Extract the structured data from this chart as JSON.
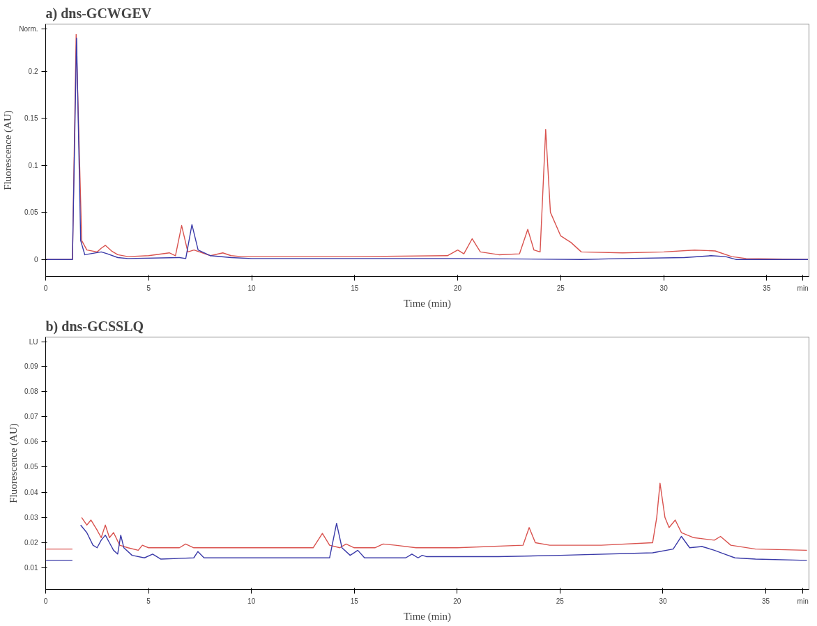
{
  "chart_data": [
    {
      "type": "line",
      "title": "a) dns-GCWGEV",
      "xlabel": "Time (min)",
      "ylabel": "Fluorescence (AU)",
      "xlim": [
        0,
        37.05
      ],
      "ylim": [
        -0.018,
        0.25
      ],
      "xticks": [
        0,
        5,
        10,
        15,
        20,
        25,
        30,
        35,
        {
          "value": 36.75,
          "label": "min"
        }
      ],
      "yticks": [
        0,
        0.05,
        0.1,
        0.15,
        0.2,
        {
          "value": 0.245,
          "label": "Norm."
        }
      ],
      "series": [
        {
          "color": "#d9534f",
          "x": [
            0,
            1.3,
            1.48,
            1.75,
            2.0,
            2.5,
            2.7,
            2.9,
            3.2,
            3.5,
            4.0,
            5.0,
            6.0,
            6.3,
            6.6,
            6.9,
            7.2,
            8.0,
            8.6,
            9.0,
            9.5,
            12,
            15,
            19.5,
            20.0,
            20.3,
            20.7,
            21.1,
            22.0,
            23.0,
            23.4,
            23.7,
            24.0,
            24.27,
            24.5,
            25.0,
            25.5,
            26.0,
            28,
            30,
            31.5,
            32.5,
            33.3,
            34.0,
            37.0
          ],
          "values": [
            0,
            0,
            0.239,
            0.02,
            0.01,
            0.008,
            0.012,
            0.015,
            0.009,
            0.005,
            0.003,
            0.004,
            0.007,
            0.004,
            0.036,
            0.008,
            0.01,
            0.004,
            0.007,
            0.004,
            0.003,
            0.003,
            0.003,
            0.004,
            0.01,
            0.006,
            0.022,
            0.008,
            0.005,
            0.006,
            0.032,
            0.01,
            0.008,
            0.138,
            0.05,
            0.025,
            0.018,
            0.008,
            0.007,
            0.008,
            0.01,
            0.009,
            0.003,
            0.001,
            0
          ]
        },
        {
          "color": "#3a3aa8",
          "x": [
            0,
            1.3,
            1.5,
            1.7,
            1.9,
            2.7,
            3.0,
            3.5,
            4.0,
            6.5,
            6.8,
            7.1,
            7.4,
            8.0,
            9.0,
            10.0,
            20,
            26,
            28,
            31,
            32.3,
            33.0,
            33.5,
            37.0
          ],
          "values": [
            0,
            0,
            0.235,
            0.02,
            0.005,
            0.008,
            0.006,
            0.002,
            0.001,
            0.002,
            0.001,
            0.037,
            0.01,
            0.004,
            0.002,
            0.001,
            0.001,
            0,
            0.001,
            0.002,
            0.004,
            0.003,
            0,
            0
          ]
        }
      ]
    },
    {
      "type": "line",
      "title": "b) dns-GCSSLQ",
      "xlabel": "Time (min)",
      "ylabel": "Fluorescence (AU)",
      "xlim": [
        0,
        37.1
      ],
      "ylim": [
        0.0015,
        0.1015
      ],
      "xticks": [
        0,
        5,
        10,
        15,
        20,
        25,
        30,
        35,
        {
          "value": 36.8,
          "label": "min"
        }
      ],
      "yticks": [
        0.01,
        0.02,
        0.03,
        0.04,
        0.05,
        0.06,
        0.07,
        0.08,
        0.09,
        {
          "value": 0.0995,
          "label": "LU"
        }
      ],
      "series": [
        {
          "color": "#d9534f",
          "x": [
            0,
            1.3,
            1.42,
            1.62,
            1.75,
            2.0,
            2.2,
            2.5,
            2.7,
            2.9,
            3.1,
            3.3,
            3.6,
            4.0,
            4.5,
            4.7,
            5.0,
            6.5,
            6.8,
            7.2,
            10,
            13.0,
            13.45,
            13.8,
            14.3,
            14.6,
            15.0,
            16.0,
            16.4,
            17,
            18,
            20,
            23.2,
            23.5,
            23.8,
            24.5,
            27,
            29.5,
            29.7,
            29.86,
            30.1,
            30.3,
            30.6,
            30.9,
            31.5,
            32.0,
            32.5,
            32.8,
            33.3,
            34.5,
            37
          ],
          "values": [
            0.0175,
            0.0175,
            null,
            null,
            0.03,
            0.027,
            0.029,
            0.025,
            0.022,
            0.027,
            0.022,
            0.024,
            0.019,
            0.018,
            0.017,
            0.019,
            0.018,
            0.018,
            0.0195,
            0.018,
            0.018,
            0.018,
            0.0237,
            0.019,
            0.018,
            0.0195,
            0.018,
            0.018,
            0.0195,
            0.019,
            0.018,
            0.018,
            0.019,
            0.026,
            0.02,
            0.019,
            0.019,
            0.02,
            0.03,
            0.0436,
            0.03,
            0.026,
            0.029,
            0.024,
            0.022,
            0.0215,
            0.021,
            0.0225,
            0.019,
            0.0175,
            0.017
          ]
        },
        {
          "color": "#3a3aa8",
          "x": [
            0,
            1.3,
            1.4,
            1.6,
            1.7,
            2.0,
            2.3,
            2.5,
            2.7,
            2.9,
            3.1,
            3.3,
            3.5,
            3.65,
            3.8,
            4.2,
            4.8,
            5.2,
            5.6,
            7.2,
            7.4,
            7.7,
            10,
            13.8,
            14.14,
            14.4,
            14.8,
            15.17,
            15.5,
            17.5,
            17.8,
            18.1,
            18.3,
            18.5,
            22,
            25,
            29.5,
            30.5,
            30.9,
            31.3,
            31.9,
            32.5,
            33.0,
            33.5,
            34.5,
            37
          ],
          "values": [
            0.013,
            0.013,
            null,
            null,
            0.027,
            0.024,
            0.019,
            0.018,
            0.021,
            0.023,
            0.02,
            0.017,
            0.0155,
            0.023,
            0.018,
            0.015,
            0.014,
            0.0155,
            0.0135,
            0.014,
            0.0165,
            0.014,
            0.014,
            0.014,
            0.0277,
            0.018,
            0.015,
            0.017,
            0.014,
            0.014,
            0.0155,
            0.014,
            0.015,
            0.0145,
            0.0145,
            0.015,
            0.016,
            0.0175,
            0.0225,
            0.018,
            0.0185,
            0.017,
            0.0155,
            0.014,
            0.0135,
            0.013
          ]
        }
      ]
    }
  ]
}
